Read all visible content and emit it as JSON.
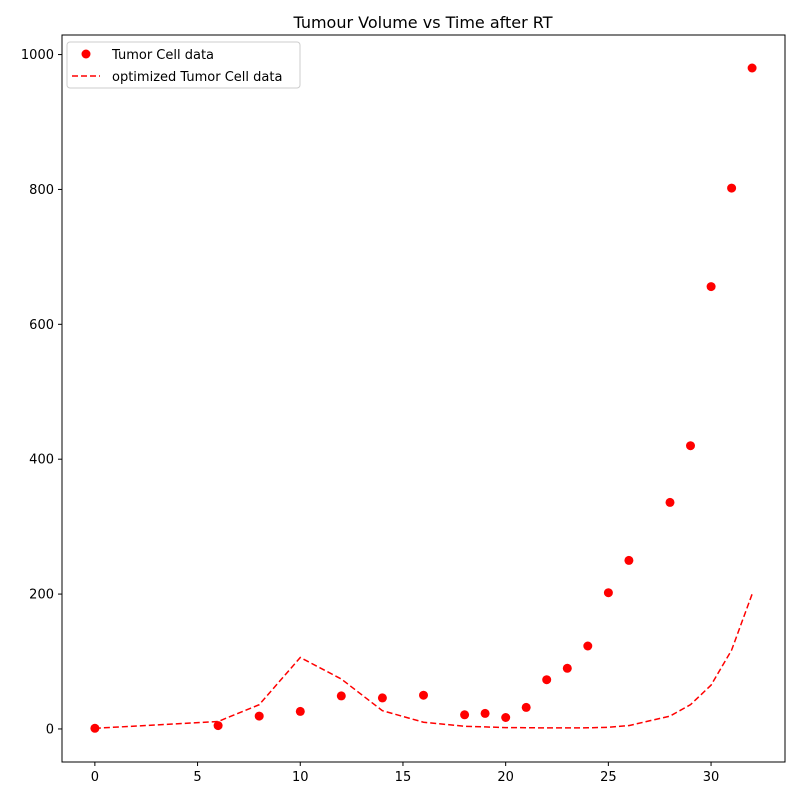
{
  "chart_data": {
    "type": "scatter",
    "title": "Tumour Volume vs Time after RT",
    "xlabel": "",
    "ylabel": "",
    "xlim": [
      -1.6,
      33.6
    ],
    "ylim": [
      -49,
      1029
    ],
    "x_ticks": [
      0,
      5,
      10,
      15,
      20,
      25,
      30
    ],
    "y_ticks": [
      0,
      200,
      400,
      600,
      800,
      1000
    ],
    "grid": false,
    "legend_position": "top-left",
    "series": [
      {
        "name": "Tumor Cell data",
        "style": "markers",
        "color": "#ff0000",
        "x": [
          0,
          6,
          8,
          10,
          12,
          14,
          16,
          18,
          19,
          20,
          21,
          22,
          23,
          24,
          25,
          26,
          28,
          29,
          30,
          31,
          32
        ],
        "y": [
          1,
          5,
          19,
          26,
          49,
          46,
          50,
          21,
          23,
          17,
          32,
          73,
          90,
          123,
          202,
          250,
          336,
          420,
          656,
          802,
          980
        ]
      },
      {
        "name": "optimized Tumor Cell data",
        "style": "dashed",
        "color": "#ff0000",
        "x": [
          0,
          6,
          8,
          10,
          12,
          14,
          16,
          18,
          19,
          20,
          21,
          22,
          23,
          24,
          25,
          26,
          28,
          29,
          30,
          31,
          32
        ],
        "y": [
          1,
          11,
          36,
          106,
          74,
          27,
          10,
          4,
          3,
          2,
          1.8,
          1.5,
          1.5,
          1.7,
          2.5,
          5,
          19,
          36,
          65,
          117,
          200
        ]
      }
    ]
  }
}
